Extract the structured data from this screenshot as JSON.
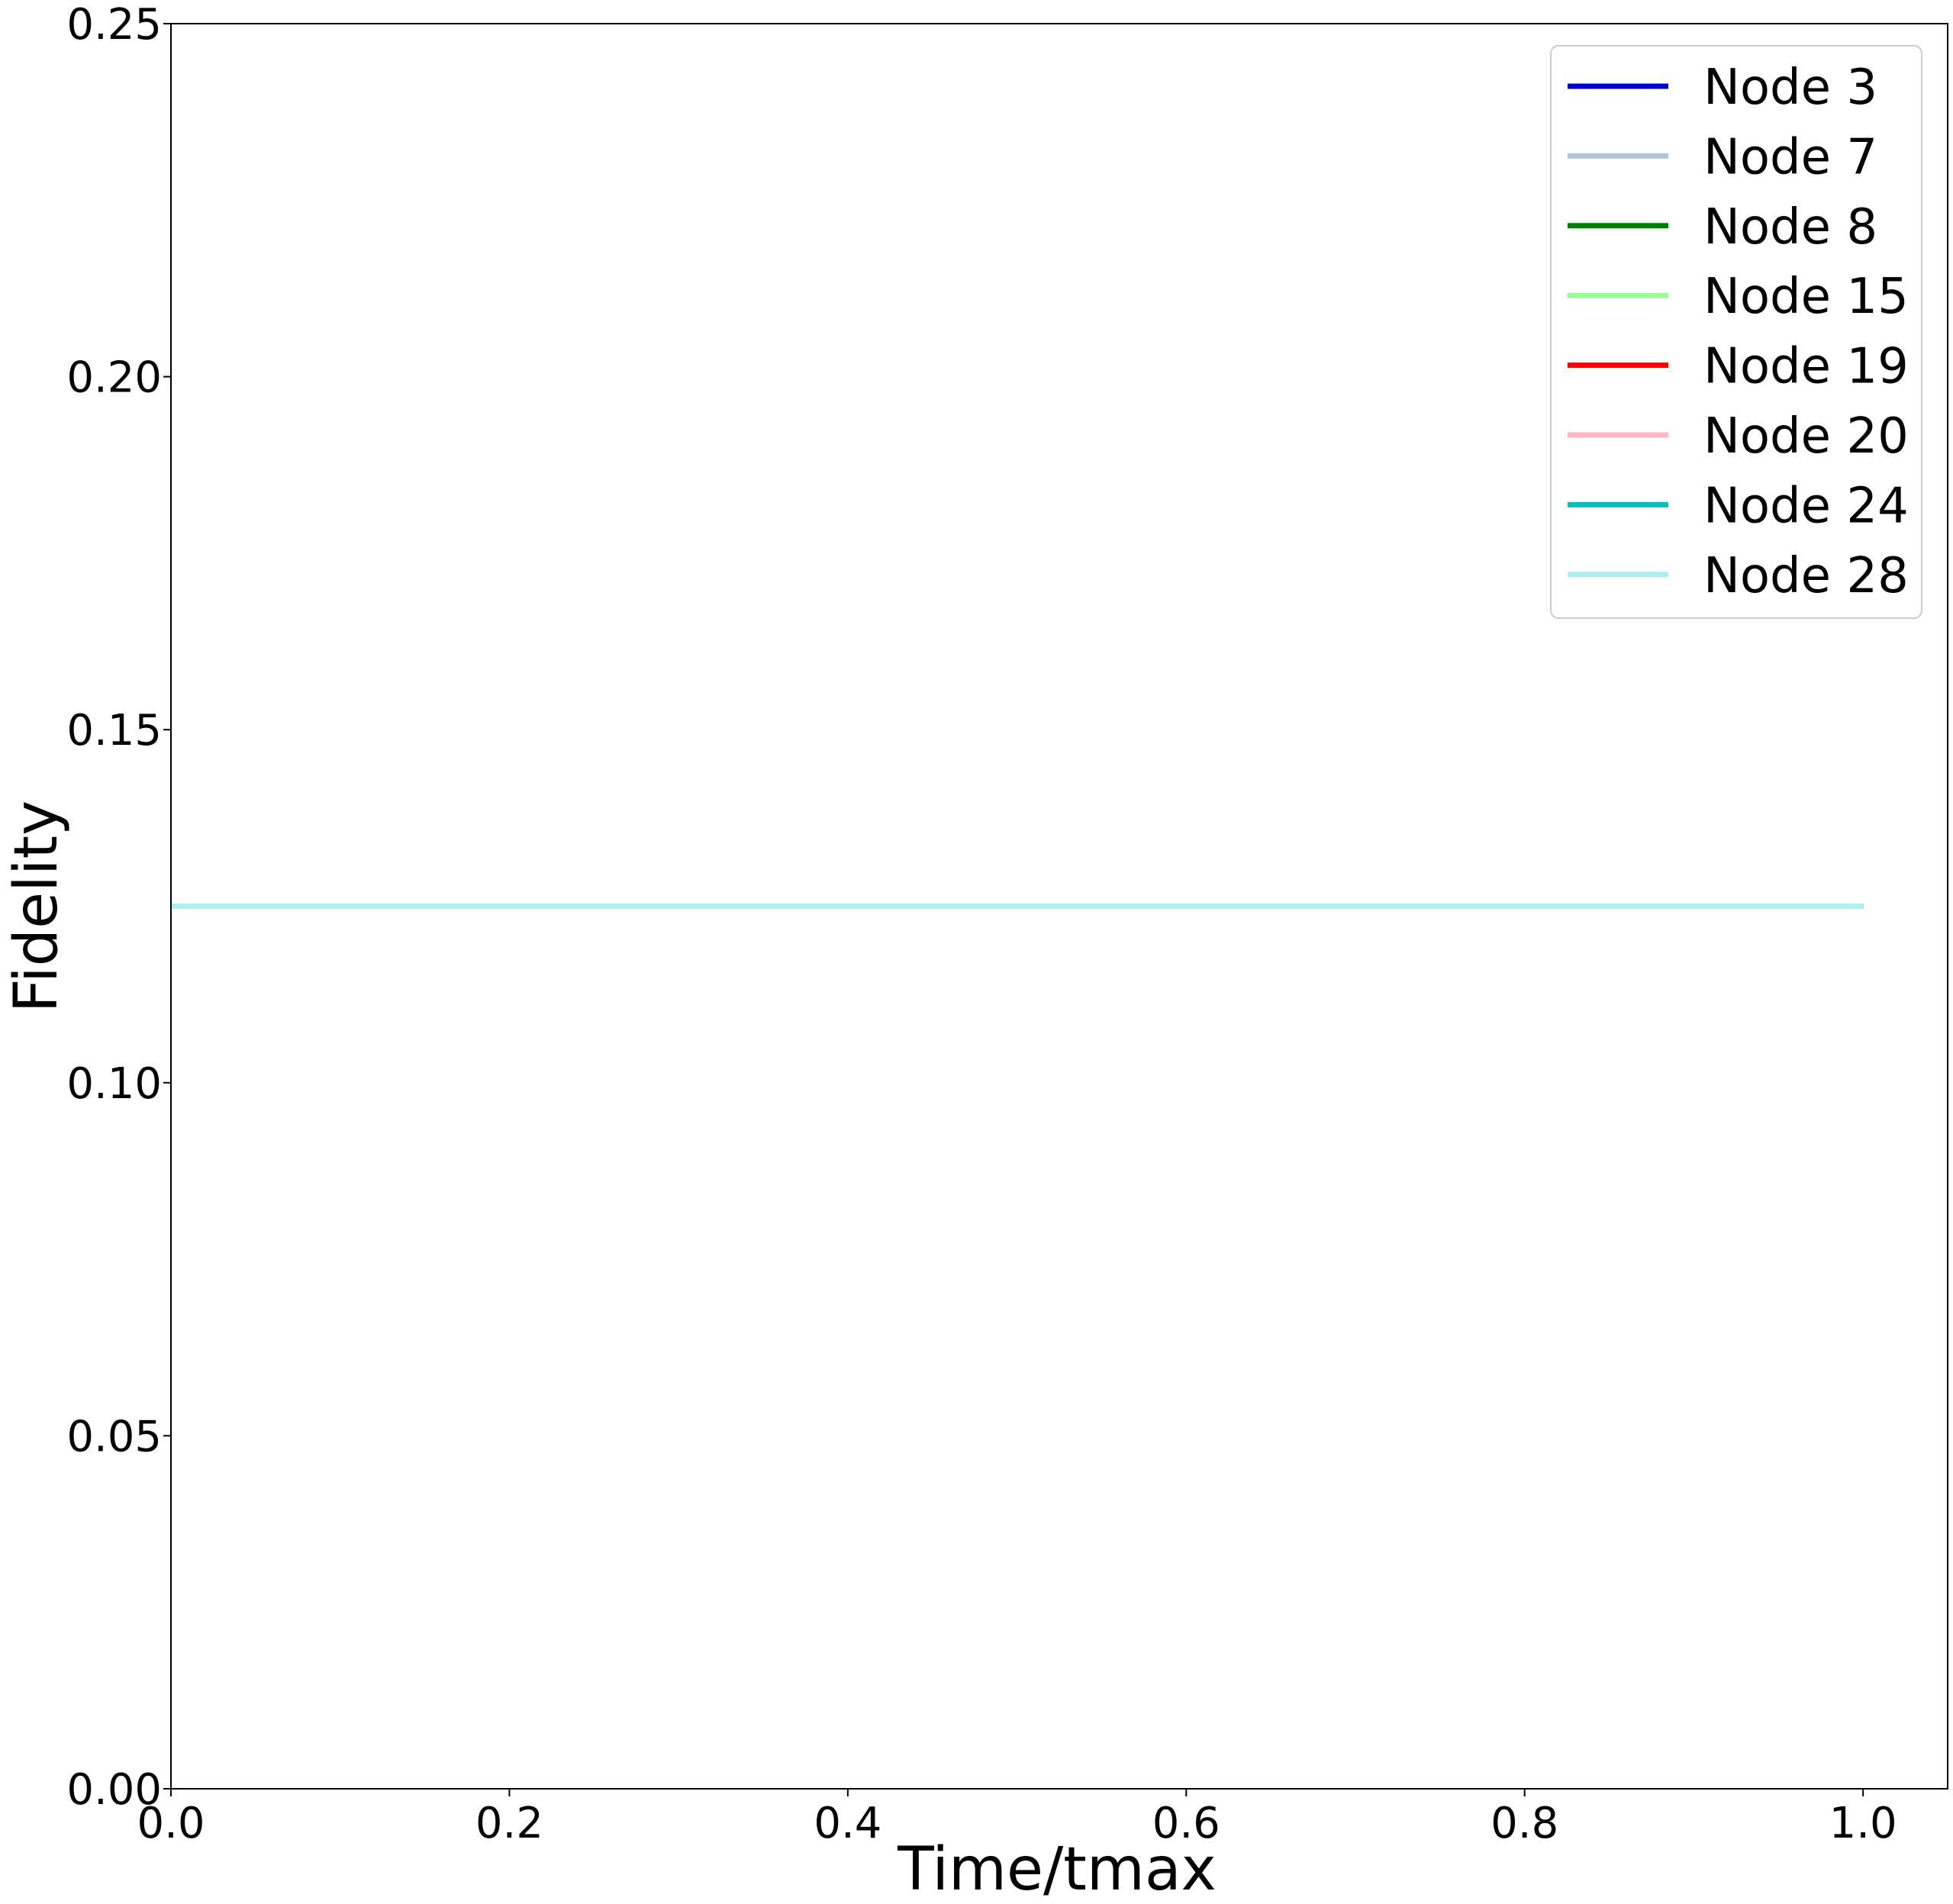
{
  "chart_data": {
    "type": "line",
    "title": "",
    "xlabel": "Time/tmax",
    "ylabel": "Fidelity",
    "xlim": [
      0.0,
      1.05
    ],
    "ylim": [
      0.0,
      0.25
    ],
    "xticks": [
      0.0,
      0.2,
      0.4,
      0.6,
      0.8,
      1.0
    ],
    "xtick_labels": [
      "0.0",
      "0.2",
      "0.4",
      "0.6",
      "0.8",
      "1.0"
    ],
    "yticks": [
      0.0,
      0.05,
      0.1,
      0.15,
      0.2,
      0.25
    ],
    "ytick_labels": [
      "0.00",
      "0.05",
      "0.10",
      "0.15",
      "0.20",
      "0.25"
    ],
    "grid": false,
    "legend_position": "top-right",
    "x": [
      0.0,
      0.25,
      0.5,
      0.75,
      1.0
    ],
    "series": [
      {
        "name": "Node 3",
        "color": "#0000cd",
        "values": [
          0.125,
          0.125,
          0.125,
          0.125,
          0.125
        ]
      },
      {
        "name": "Node 7",
        "color": "#b0c4de",
        "values": [
          0.125,
          0.125,
          0.125,
          0.125,
          0.125
        ]
      },
      {
        "name": "Node 8",
        "color": "#008000",
        "values": [
          0.125,
          0.125,
          0.125,
          0.125,
          0.125
        ]
      },
      {
        "name": "Node 15",
        "color": "#98fb98",
        "values": [
          0.125,
          0.125,
          0.125,
          0.125,
          0.125
        ]
      },
      {
        "name": "Node 19",
        "color": "#ff0000",
        "values": [
          0.125,
          0.125,
          0.125,
          0.125,
          0.125
        ]
      },
      {
        "name": "Node 20",
        "color": "#ffb6c1",
        "values": [
          0.125,
          0.125,
          0.125,
          0.125,
          0.125
        ]
      },
      {
        "name": "Node 24",
        "color": "#00bfbf",
        "values": [
          0.125,
          0.125,
          0.125,
          0.125,
          0.125
        ]
      },
      {
        "name": "Node 28",
        "color": "#afeeee",
        "values": [
          0.125,
          0.125,
          0.125,
          0.125,
          0.125
        ]
      }
    ]
  }
}
